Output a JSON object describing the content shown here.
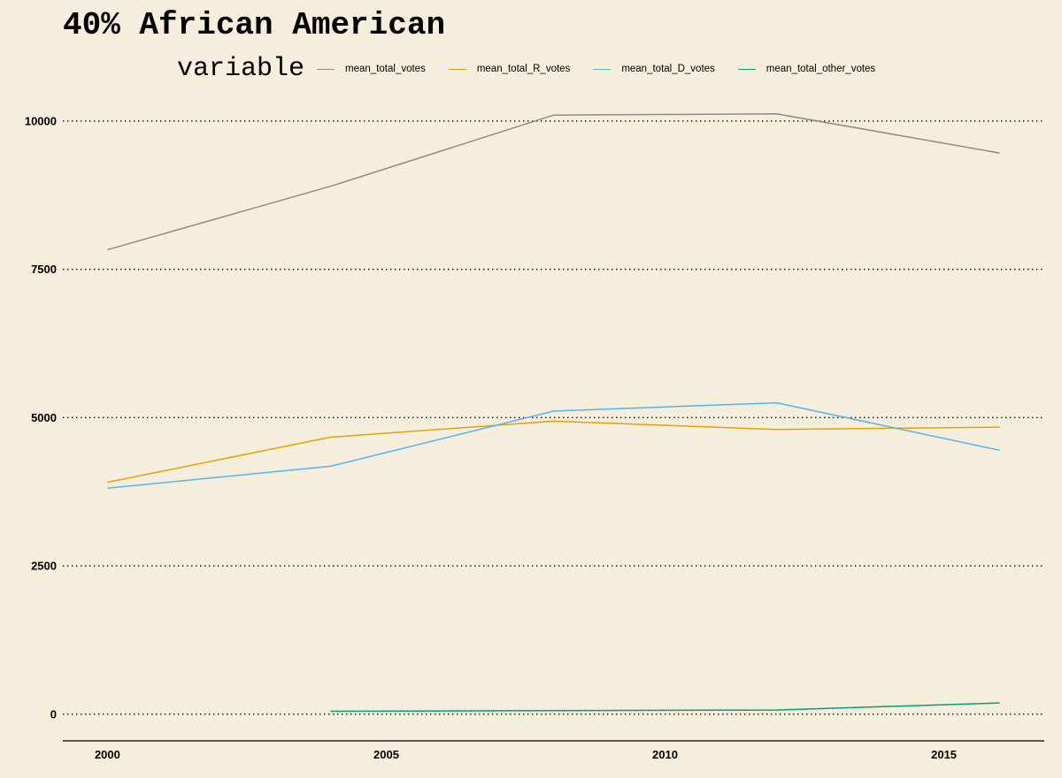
{
  "chart_data": {
    "type": "line",
    "title": "40% African American",
    "xlabel": "",
    "ylabel": "",
    "legend_title": "variable",
    "legend_position": "top",
    "grid": "horizontal dotted",
    "xlim": [
      1999.2,
      2016.8
    ],
    "ylim": [
      -450,
      10550
    ],
    "x_ticks": [
      2000,
      2005,
      2010,
      2015
    ],
    "y_ticks": [
      0,
      2500,
      5000,
      7500,
      10000
    ],
    "series": [
      {
        "name": "mean_total_votes",
        "color": "#8f8a88",
        "x": [
          2000,
          2004,
          2008,
          2012,
          2016
        ],
        "y": [
          7830,
          8900,
          10100,
          10120,
          9460
        ]
      },
      {
        "name": "mean_total_R_votes",
        "color": "#e69f00",
        "x": [
          2000,
          2004,
          2008,
          2012,
          2016
        ],
        "y": [
          3910,
          4670,
          4940,
          4800,
          4840
        ]
      },
      {
        "name": "mean_total_D_votes",
        "color": "#56b4e9",
        "x": [
          2000,
          2004,
          2008,
          2012,
          2016
        ],
        "y": [
          3810,
          4180,
          5110,
          5250,
          4450
        ]
      },
      {
        "name": "mean_total_other_votes",
        "color": "#009e73",
        "x": [
          2004,
          2008,
          2012,
          2016
        ],
        "y": [
          50,
          60,
          70,
          190
        ]
      }
    ]
  }
}
